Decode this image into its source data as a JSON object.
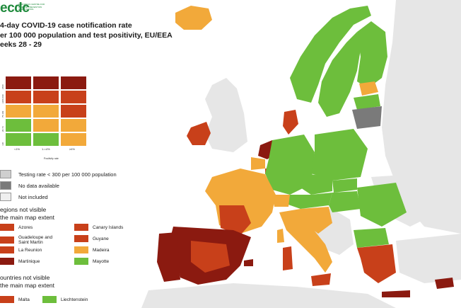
{
  "logo": {
    "text": "ecdc",
    "subtitle": "EUROPEAN CENTRE FOR DISEASE PREVENTION AND CONTROL"
  },
  "title": {
    "line1": "4-day COVID-19 case notification rate",
    "line2": "er 100 000 population and test positivity, EU/EEA",
    "line3": "eeks 28 - 29"
  },
  "matrix": {
    "y_ticks": [
      "≥500",
      "≥200-499",
      "75-199",
      "20-74",
      "<20"
    ],
    "x_ticks": [
      "<1%",
      "1-<4%",
      "≥4%"
    ],
    "x_title": "Positivity rate",
    "rows": [
      [
        "#8b1a10",
        "#8b1a10",
        "#8b1a10"
      ],
      [
        "#c8401a",
        "#c8401a",
        "#c8401a"
      ],
      [
        "#f2a93a",
        "#f2a93a",
        "#c8401a"
      ],
      [
        "#6dbe3c",
        "#f2a93a",
        "#f2a93a"
      ],
      [
        "#6dbe3c",
        "#6dbe3c",
        "#f2a93a"
      ]
    ]
  },
  "legend": {
    "items": [
      {
        "label": "Testing rate < 300 per 100 000 population",
        "color": "#cfcfcf"
      },
      {
        "label": "No data available",
        "color": "#7a7a7a"
      },
      {
        "label": "Not included",
        "color": "#efefef"
      }
    ]
  },
  "regions": {
    "title_line1": "egions not visible",
    "title_line2": "the main map extent",
    "items": [
      {
        "label": "Azores",
        "color": "#c8401a"
      },
      {
        "label": "Canary Islands",
        "color": "#c8401a"
      },
      {
        "label": "Guadeloupe and Saint Martin",
        "color": "#c8401a"
      },
      {
        "label": "Guyane",
        "color": "#c8401a"
      },
      {
        "label": "La Reunion",
        "color": "#c8401a"
      },
      {
        "label": "Madeira",
        "color": "#f2a93a"
      },
      {
        "label": "Martinique",
        "color": "#8b1a10"
      },
      {
        "label": "Mayotte",
        "color": "#6dbe3c"
      }
    ]
  },
  "countries": {
    "title_line1": "ountries not visible",
    "title_line2": "the main map extent",
    "items": [
      {
        "label": "Malta",
        "color": "#c8401a"
      },
      {
        "label": "Liechtenstein",
        "color": "#6dbe3c"
      }
    ]
  },
  "colors": {
    "dark_red": "#8b1a10",
    "red": "#c8401a",
    "orange": "#f2a93a",
    "green": "#6dbe3c",
    "grey_dark": "#7a7a7a",
    "land_grey": "#e6e6e6",
    "sea": "#ffffff"
  }
}
